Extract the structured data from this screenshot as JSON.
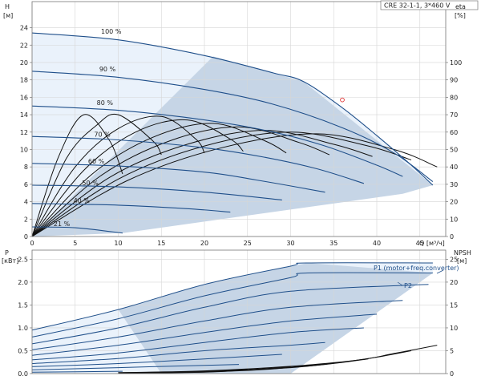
{
  "title": "CRE 32-1-1, 3*460 V",
  "chart_data": [
    {
      "type": "line",
      "name_id": "head-eta",
      "xlabel": "Q [м³/ч]",
      "ylabel_left_1": "H",
      "ylabel_left_2": "[м]",
      "ylabel_right_1": "eta",
      "ylabel_right_2": "[%]",
      "xlim": [
        0,
        48
      ],
      "ylim": [
        0,
        27
      ],
      "eta_lim": [
        0,
        135
      ],
      "x_ticks": [
        0,
        5,
        10,
        15,
        20,
        25,
        30,
        35,
        40,
        45
      ],
      "y_ticks": [
        0,
        2,
        4,
        6,
        8,
        10,
        12,
        14,
        16,
        18,
        20,
        22,
        24
      ],
      "eta_ticks": [
        0,
        10,
        20,
        30,
        40,
        50,
        60,
        70,
        80,
        90,
        100
      ],
      "grid": true,
      "head_curves": [
        {
          "label": "100 %",
          "x": [
            0,
            10,
            20,
            28,
            31.5,
            36,
            40,
            44,
            46.5
          ],
          "y": [
            23.4,
            22.6,
            20.8,
            18.8,
            17.8,
            14.8,
            11.6,
            8.2,
            5.9
          ]
        },
        {
          "label": "90 %",
          "x": [
            0,
            10,
            20,
            28,
            36,
            42,
            46.5
          ],
          "y": [
            19,
            18.3,
            16.9,
            15.2,
            12.5,
            9.6,
            6.3
          ]
        },
        {
          "label": "80 %",
          "x": [
            0,
            10,
            20,
            28,
            34,
            40,
            43
          ],
          "y": [
            15,
            14.5,
            13.4,
            12.0,
            10.4,
            8.2,
            6.9
          ]
        },
        {
          "label": "70 %",
          "x": [
            0,
            10,
            20,
            27,
            33,
            38.5
          ],
          "y": [
            11.5,
            11.1,
            10.2,
            9.1,
            7.8,
            6.1
          ]
        },
        {
          "label": "60 %",
          "x": [
            0,
            10,
            20,
            26,
            34
          ],
          "y": [
            8.4,
            8.1,
            7.4,
            6.5,
            5.1
          ]
        },
        {
          "label": "50 %",
          "x": [
            0,
            10,
            20,
            29
          ],
          "y": [
            5.9,
            5.7,
            5.1,
            4.2
          ]
        },
        {
          "label": "40 %",
          "x": [
            0,
            10,
            18,
            23
          ],
          "y": [
            3.8,
            3.6,
            3.2,
            2.8
          ]
        },
        {
          "label": "21 %",
          "x": [
            0,
            5,
            10.5
          ],
          "y": [
            1.1,
            1.0,
            0.4
          ]
        }
      ],
      "eta_curves": [
        {
          "x": [
            0,
            3,
            6,
            9,
            10.5
          ],
          "y": [
            0,
            45,
            70,
            55,
            36
          ]
        },
        {
          "x": [
            0,
            4,
            7.5,
            10,
            14,
            15
          ],
          "y": [
            0,
            45,
            64,
            70,
            55,
            47
          ]
        },
        {
          "x": [
            0,
            5,
            10,
            15,
            19,
            20
          ],
          "y": [
            0,
            40,
            62,
            69,
            56,
            48
          ]
        },
        {
          "x": [
            0,
            6,
            12,
            18,
            23,
            24.5
          ],
          "y": [
            0,
            38,
            60,
            67,
            56,
            49
          ]
        },
        {
          "x": [
            0,
            7,
            14,
            21,
            27,
            29.5
          ],
          "y": [
            0,
            36,
            57,
            65,
            55,
            48
          ]
        },
        {
          "x": [
            0,
            8,
            16,
            24,
            31,
            34.5
          ],
          "y": [
            0,
            35,
            55,
            63,
            54,
            47
          ]
        },
        {
          "x": [
            0,
            9,
            18,
            27,
            35,
            39.5
          ],
          "y": [
            0,
            34,
            53,
            61,
            53,
            46
          ]
        },
        {
          "x": [
            0,
            10,
            20,
            30,
            39,
            44
          ],
          "y": [
            0,
            33,
            52,
            60,
            52,
            44
          ]
        },
        {
          "x": [
            0,
            11,
            22,
            33,
            42,
            47
          ],
          "y": [
            0,
            32,
            51,
            59,
            50,
            40
          ]
        }
      ],
      "marker": {
        "x": 36,
        "y": 15.7
      }
    },
    {
      "type": "line",
      "name_id": "power-npsh",
      "ylabel_left_1": "P",
      "ylabel_left_2": "[кВт]",
      "ylabel_right_1": "NPSH",
      "ylabel_right_2": "[м]",
      "xlim": [
        0,
        48
      ],
      "ylim": [
        0,
        2.7
      ],
      "npsh_lim": [
        0,
        27
      ],
      "y_ticks": [
        0,
        0.5,
        1.0,
        1.5,
        2.0,
        2.5
      ],
      "y_tick_labels": [
        "0.0",
        "0.5",
        "1.0",
        "1.5",
        "2.0",
        "2.5"
      ],
      "npsh_ticks": [
        0,
        5,
        10,
        15,
        20,
        25
      ],
      "legend_labels": [
        "P1 (motor+freq.converter)",
        "P2"
      ],
      "power_curves": [
        {
          "x": [
            0,
            10,
            20,
            30,
            32,
            46.5
          ],
          "y": [
            0.95,
            1.4,
            1.95,
            2.35,
            2.42,
            2.42
          ]
        },
        {
          "x": [
            0,
            10,
            20,
            30,
            32,
            46.5
          ],
          "y": [
            0.8,
            1.2,
            1.7,
            2.1,
            2.2,
            2.2
          ]
        },
        {
          "x": [
            0,
            10,
            20,
            30,
            46
          ],
          "y": [
            0.65,
            1.0,
            1.45,
            1.8,
            1.95
          ]
        },
        {
          "x": [
            0,
            10,
            20,
            30,
            43
          ],
          "y": [
            0.52,
            0.8,
            1.15,
            1.45,
            1.6
          ]
        },
        {
          "x": [
            0,
            10,
            20,
            30,
            40
          ],
          "y": [
            0.4,
            0.62,
            0.9,
            1.15,
            1.3
          ]
        },
        {
          "x": [
            0,
            10,
            20,
            30,
            38.5
          ],
          "y": [
            0.3,
            0.45,
            0.68,
            0.9,
            1.0
          ]
        },
        {
          "x": [
            0,
            10,
            20,
            30,
            34
          ],
          "y": [
            0.22,
            0.33,
            0.5,
            0.62,
            0.68
          ]
        },
        {
          "x": [
            0,
            10,
            20,
            29
          ],
          "y": [
            0.15,
            0.22,
            0.32,
            0.42
          ]
        },
        {
          "x": [
            0,
            10,
            20,
            24
          ],
          "y": [
            0.08,
            0.13,
            0.18,
            0.2
          ]
        },
        {
          "x": [
            0,
            10.5
          ],
          "y": [
            0.03,
            0.05
          ]
        }
      ],
      "npsh_curves": [
        {
          "x": [
            10,
            20,
            30,
            38,
            42,
            47
          ],
          "y": [
            0.2,
            0.6,
            1.6,
            3.0,
            4.4,
            6.2
          ]
        },
        {
          "x": [
            10,
            20,
            30,
            36,
            40,
            44
          ],
          "y": [
            0.2,
            0.5,
            1.3,
            2.5,
            3.6,
            5.0
          ]
        },
        {
          "x": [
            10,
            20,
            28,
            34,
            39
          ],
          "y": [
            0.2,
            0.4,
            1.1,
            2.0,
            3.2
          ]
        },
        {
          "x": [
            10,
            20,
            27,
            31,
            35
          ],
          "y": [
            0.1,
            0.35,
            0.9,
            1.6,
            2.3
          ]
        },
        {
          "x": [
            10,
            20,
            25,
            30
          ],
          "y": [
            0.1,
            0.3,
            0.8,
            1.5
          ]
        },
        {
          "x": [
            10,
            18,
            22,
            25
          ],
          "y": [
            0.1,
            0.3,
            0.6,
            0.9
          ]
        }
      ]
    }
  ]
}
